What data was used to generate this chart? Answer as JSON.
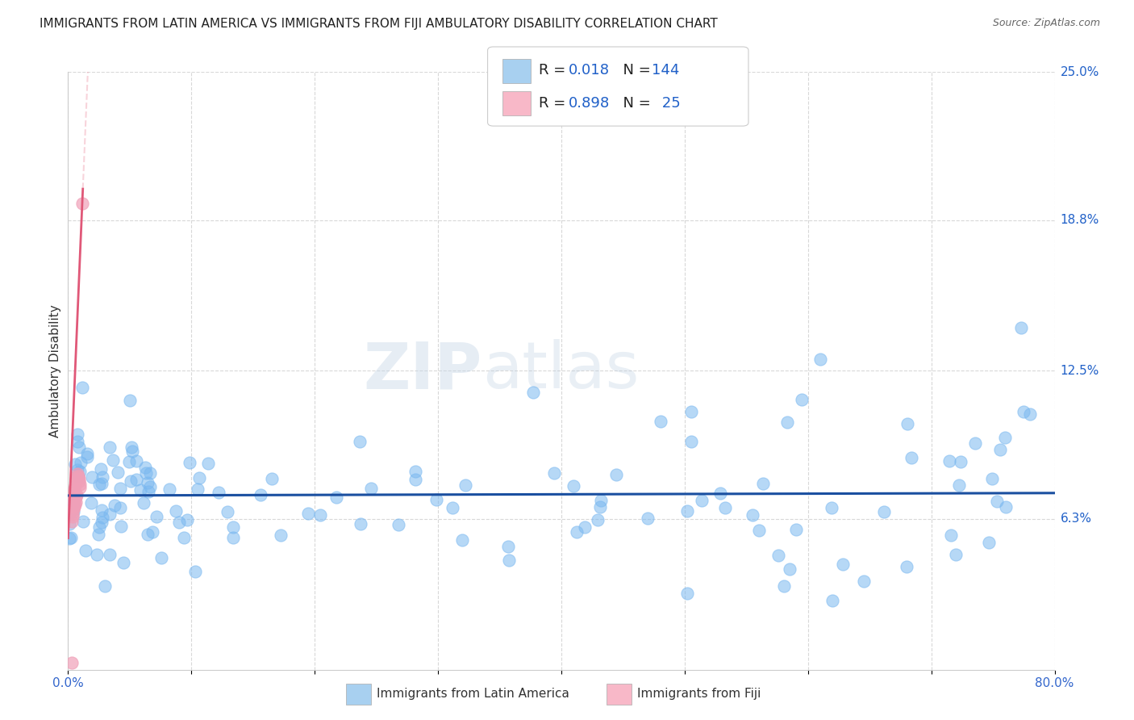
{
  "title": "IMMIGRANTS FROM LATIN AMERICA VS IMMIGRANTS FROM FIJI AMBULATORY DISABILITY CORRELATION CHART",
  "source": "Source: ZipAtlas.com",
  "ylabel": "Ambulatory Disability",
  "xlim": [
    0.0,
    0.8
  ],
  "ylim": [
    0.0,
    0.25
  ],
  "xtick_positions": [
    0.0,
    0.1,
    0.2,
    0.3,
    0.4,
    0.5,
    0.6,
    0.7,
    0.8
  ],
  "xticklabels": [
    "0.0%",
    "",
    "",
    "",
    "",
    "",
    "",
    "",
    "80.0%"
  ],
  "ytick_positions": [
    0.063,
    0.125,
    0.188,
    0.25
  ],
  "ytick_labels": [
    "6.3%",
    "12.5%",
    "18.8%",
    "25.0%"
  ],
  "watermark_zip": "ZIP",
  "watermark_atlas": "atlas",
  "legend_line1": "R = 0.018   N = 144",
  "legend_line2": "R = 0.898   N =  25",
  "color_blue_scatter": "#7ab8f0",
  "color_pink_scatter": "#f0a0b8",
  "color_blue_line": "#1a4fa0",
  "color_pink_line": "#e05878",
  "color_pink_dash": "#f0a0b0",
  "color_grid": "#d8d8d8",
  "color_r_n": "#2060c8",
  "background": "#ffffff",
  "legend_box_blue": "#a8d0f0",
  "legend_box_pink": "#f8b8c8"
}
